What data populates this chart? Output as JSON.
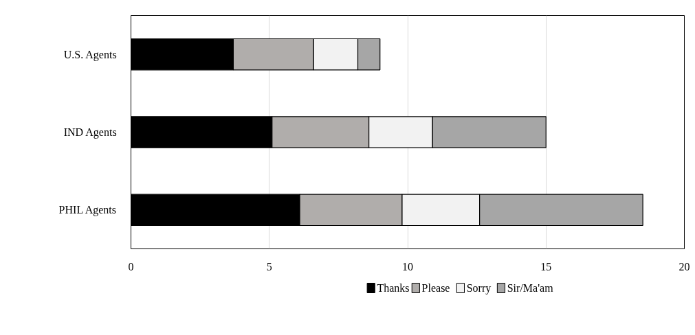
{
  "chart_data": {
    "type": "bar",
    "orientation": "horizontal",
    "stacked": true,
    "categories": [
      "U.S. Agents",
      "IND Agents",
      "PHIL Agents"
    ],
    "series": [
      {
        "name": "Thanks",
        "color": "#000000",
        "values": [
          3.7,
          5.1,
          6.1
        ]
      },
      {
        "name": "Please",
        "color": "#b0adab",
        "values": [
          2.9,
          3.5,
          3.7
        ]
      },
      {
        "name": "Sorry",
        "color": "#f2f2f2",
        "values": [
          1.6,
          2.3,
          2.8
        ]
      },
      {
        "name": "Sir/Ma'am",
        "color": "#a6a6a6",
        "values": [
          0.8,
          4.1,
          5.9
        ]
      }
    ],
    "xlim": [
      0,
      20
    ],
    "xticks": [
      0,
      5,
      10,
      15,
      20
    ],
    "grid": "x",
    "legend": "bottom"
  }
}
